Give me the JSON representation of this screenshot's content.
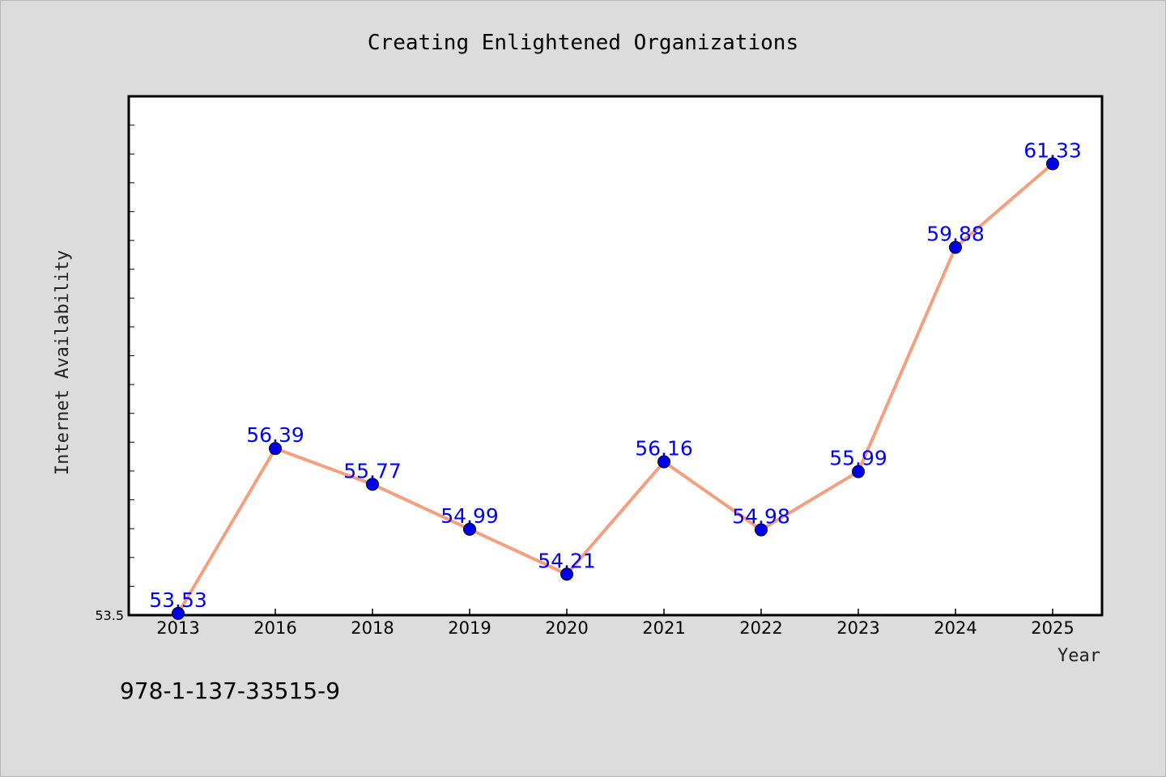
{
  "chart_data": {
    "type": "line",
    "title": "Creating Enlightened Organizations",
    "xlabel": "Year",
    "ylabel": "Internet Availability",
    "categories": [
      "2013",
      "2016",
      "2018",
      "2019",
      "2020",
      "2021",
      "2022",
      "2023",
      "2024",
      "2025"
    ],
    "series": [
      {
        "values": [
          53.53,
          56.39,
          55.77,
          54.99,
          54.21,
          56.16,
          54.98,
          55.99,
          59.88,
          61.33
        ],
        "data_labels": [
          "53.53",
          "56.39",
          "55.77",
          "54.99",
          "54.21",
          "56.16",
          "54.98",
          "55.99",
          "59.88",
          "61.33"
        ],
        "line_color": "#f4a07e",
        "marker_color": "#0000ee"
      }
    ],
    "ylim": [
      53.5,
      62.5
    ],
    "yticks_labeled": [
      "53.5"
    ],
    "grid": false,
    "legend": "none"
  },
  "footer": {
    "isbn": "978-1-137-33515-9"
  },
  "colors": {
    "background": "#dcdcdc",
    "plot_area": "#ffffff",
    "data_label": "#0000ff"
  }
}
